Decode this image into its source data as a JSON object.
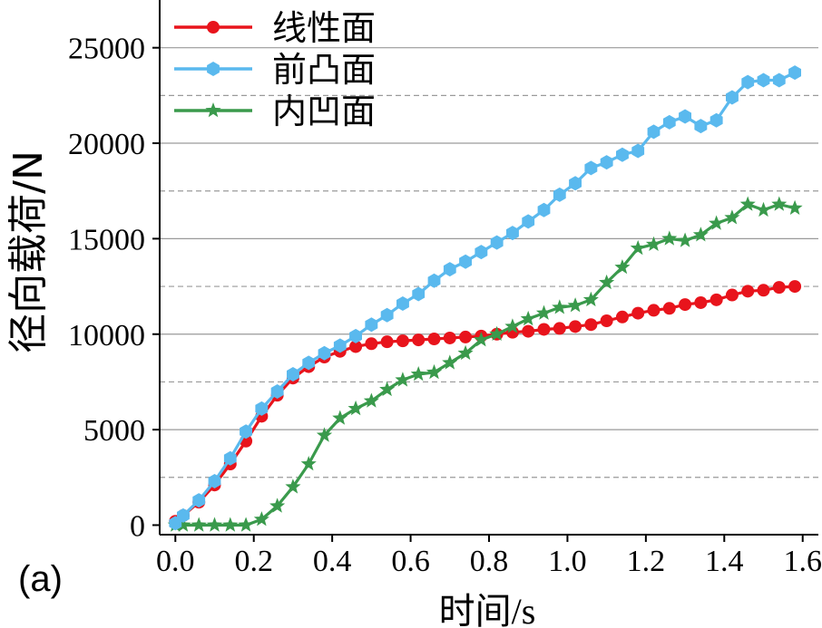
{
  "chart_data": {
    "type": "line",
    "panel_label": "(a)",
    "xlabel": "时间/s",
    "ylabel": "径向载荷/N",
    "xlim": [
      -0.04,
      1.64
    ],
    "ylim": [
      -500,
      27500
    ],
    "x_ticks": [
      0.0,
      0.2,
      0.4,
      0.6,
      0.8,
      1.0,
      1.2,
      1.4,
      1.6
    ],
    "x_tick_labels": [
      "0.0",
      "0.2",
      "0.4",
      "0.6",
      "0.8",
      "1.0",
      "1.2",
      "1.4",
      "1.6"
    ],
    "y_ticks": [
      0,
      5000,
      10000,
      15000,
      20000,
      25000
    ],
    "y_tick_labels": [
      "0",
      "5000",
      "10000",
      "15000",
      "20000",
      "25000"
    ],
    "grid": {
      "major_y": [
        5000,
        10000,
        15000,
        20000,
        25000
      ],
      "minor_y_dashed": [
        2500,
        7500,
        12500,
        17500,
        22500
      ]
    },
    "legend_position": "top-left",
    "series": [
      {
        "name": "线性面",
        "color": "#e8141c",
        "marker": "circle",
        "x": [
          0.0,
          0.02,
          0.06,
          0.1,
          0.14,
          0.18,
          0.22,
          0.26,
          0.3,
          0.34,
          0.38,
          0.42,
          0.46,
          0.5,
          0.54,
          0.58,
          0.62,
          0.66,
          0.7,
          0.74,
          0.78,
          0.82,
          0.86,
          0.9,
          0.94,
          0.98,
          1.02,
          1.06,
          1.1,
          1.14,
          1.18,
          1.22,
          1.26,
          1.3,
          1.34,
          1.38,
          1.42,
          1.46,
          1.5,
          1.54,
          1.58
        ],
        "y": [
          200,
          500,
          1200,
          2100,
          3200,
          4400,
          5700,
          6800,
          7700,
          8300,
          8800,
          9100,
          9350,
          9500,
          9600,
          9650,
          9700,
          9750,
          9800,
          9850,
          9900,
          10000,
          10100,
          10150,
          10250,
          10300,
          10400,
          10500,
          10700,
          10900,
          11100,
          11250,
          11350,
          11550,
          11650,
          11800,
          12050,
          12250,
          12300,
          12450,
          12500
        ]
      },
      {
        "name": "前凸面",
        "color": "#5ab9ee",
        "marker": "hexagon",
        "x": [
          0.0,
          0.02,
          0.06,
          0.1,
          0.14,
          0.18,
          0.22,
          0.26,
          0.3,
          0.34,
          0.38,
          0.42,
          0.46,
          0.5,
          0.54,
          0.58,
          0.62,
          0.66,
          0.7,
          0.74,
          0.78,
          0.82,
          0.86,
          0.9,
          0.94,
          0.98,
          1.02,
          1.06,
          1.1,
          1.14,
          1.18,
          1.22,
          1.26,
          1.3,
          1.34,
          1.38,
          1.42,
          1.46,
          1.5,
          1.54,
          1.58
        ],
        "y": [
          100,
          500,
          1300,
          2300,
          3500,
          4900,
          6100,
          7000,
          7900,
          8500,
          9000,
          9400,
          9900,
          10500,
          11000,
          11600,
          12100,
          12800,
          13400,
          13800,
          14300,
          14800,
          15300,
          15900,
          16500,
          17300,
          17900,
          18700,
          19000,
          19400,
          19600,
          20600,
          21100,
          21400,
          20900,
          21200,
          22400,
          23200,
          23300,
          23300,
          23700
        ]
      },
      {
        "name": "内凹面",
        "color": "#3a9a4c",
        "marker": "star",
        "x": [
          0.0,
          0.02,
          0.06,
          0.1,
          0.14,
          0.18,
          0.22,
          0.26,
          0.3,
          0.34,
          0.38,
          0.42,
          0.46,
          0.5,
          0.54,
          0.58,
          0.62,
          0.66,
          0.7,
          0.74,
          0.78,
          0.82,
          0.86,
          0.9,
          0.94,
          0.98,
          1.02,
          1.06,
          1.1,
          1.14,
          1.18,
          1.22,
          1.26,
          1.3,
          1.34,
          1.38,
          1.42,
          1.46,
          1.5,
          1.54,
          1.58
        ],
        "y": [
          0,
          0,
          0,
          0,
          0,
          0,
          300,
          1000,
          2000,
          3200,
          4700,
          5600,
          6100,
          6500,
          7100,
          7600,
          7900,
          8000,
          8500,
          9000,
          9700,
          10000,
          10400,
          10800,
          11100,
          11400,
          11500,
          11800,
          12700,
          13500,
          14500,
          14700,
          15000,
          14900,
          15200,
          15800,
          16100,
          16800,
          16500,
          16800,
          16600
        ]
      }
    ]
  }
}
